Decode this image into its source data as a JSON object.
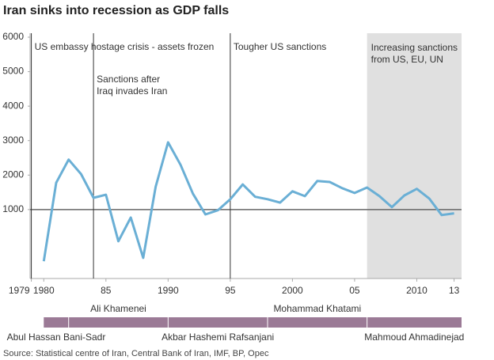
{
  "chart_data": {
    "type": "line",
    "title": "Iran sinks into recession as GDP falls",
    "source": "Source: Statistical centre of Iran, Central Bank of Iran, IMF, BP, Opec",
    "x": [
      1980,
      1981,
      1982,
      1983,
      1984,
      1985,
      1986,
      1987,
      1988,
      1989,
      1990,
      1991,
      1992,
      1993,
      1994,
      1995,
      1996,
      1997,
      1998,
      1999,
      2000,
      2001,
      2002,
      2003,
      2004,
      2005,
      2006,
      2007,
      2008,
      2009,
      2010,
      2011,
      2012,
      2013
    ],
    "values": [
      -500,
      1780,
      2450,
      2030,
      1340,
      1430,
      80,
      770,
      -400,
      1660,
      2950,
      2300,
      1460,
      860,
      980,
      1300,
      1730,
      1370,
      1300,
      1200,
      1530,
      1390,
      1830,
      1800,
      1620,
      1480,
      1640,
      1390,
      1070,
      1410,
      1600,
      1320,
      840,
      890
    ],
    "color": "#6aafd5",
    "xlim": [
      1978.9,
      2013.6
    ],
    "xticks": [
      1979,
      1980,
      {
        "value": 1985,
        "label": "85"
      },
      1990,
      {
        "value": 1995,
        "label": "95"
      },
      2000,
      {
        "value": 2005,
        "label": "05"
      },
      2010,
      {
        "value": 2013,
        "label": "13"
      }
    ],
    "ylim": [
      -1000,
      6000
    ],
    "yticks": [
      1000,
      2000,
      3000,
      4000,
      5000,
      6000
    ],
    "reference_line": 1000,
    "annotations": [
      {
        "x": 1979,
        "text": [
          "US embassy hostage crisis - assets frozen"
        ]
      },
      {
        "x": 1984,
        "text": [
          "Sanctions after",
          "Iraq invades Iran"
        ]
      },
      {
        "x": 1995,
        "text": [
          "Tougher US sanctions"
        ]
      }
    ],
    "shaded": {
      "start": 2006,
      "text": [
        "Increasing sanctions",
        "from US, EU, UN"
      ],
      "color": "#e0e0e0"
    },
    "leaders": [
      {
        "name": "Abul Hassan Bani-Sadr",
        "start": 1980
      },
      {
        "name": "Ali Khamenei",
        "start": 1982
      },
      {
        "name": "Akbar Hashemi Rafsanjani",
        "start": 1990
      },
      {
        "name": "Mohammad Khatami",
        "start": 1998
      },
      {
        "name": "Mahmoud Ahmadinejad",
        "start": 2006
      }
    ],
    "leader_color": "#9b7a96"
  }
}
